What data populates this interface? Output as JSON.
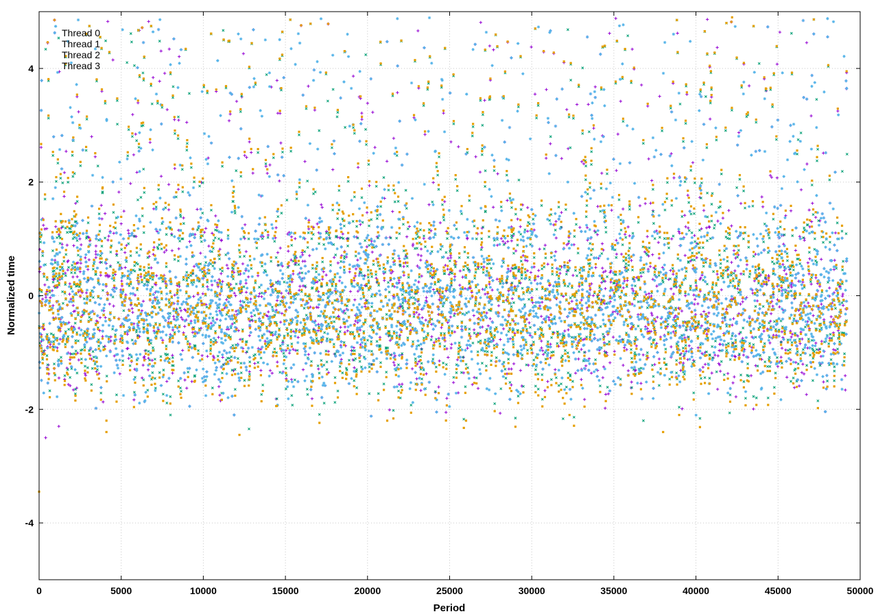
{
  "chart_data": {
    "type": "scatter",
    "title": "",
    "xlabel": "Period",
    "ylabel": "Normalized time",
    "xlim": [
      0,
      50000
    ],
    "ylim": [
      -5,
      5
    ],
    "x_ticks": [
      "0",
      "5000",
      "10000",
      "15000",
      "20000",
      "25000",
      "30000",
      "35000",
      "40000",
      "45000",
      "50000"
    ],
    "y_ticks": [
      "-4",
      "-2",
      "0",
      "2",
      "4"
    ],
    "grid": true,
    "legend_position": "top-left",
    "series": [
      {
        "name": "Thread 0",
        "color": "#9400d3",
        "marker": "plus",
        "x_range": [
          0,
          49200
        ],
        "typical_range": [
          -1.5,
          1.0
        ],
        "points": [
          [
            11000,
            -1.75
          ],
          [
            10950,
            -1.6
          ],
          [
            11050,
            -1.85
          ],
          [
            400,
            -2.5
          ],
          [
            1200,
            -2.3
          ],
          [
            31800,
            1.2
          ],
          [
            38500,
            2.5
          ],
          [
            19500,
            3.5
          ],
          [
            3200,
            2.8
          ],
          [
            42000,
            1.5
          ]
        ]
      },
      {
        "name": "Thread 1",
        "color": "#009e73",
        "marker": "cross",
        "x_range": [
          0,
          49200
        ],
        "typical_range": [
          -1.5,
          1.0
        ],
        "points": [
          [
            5800,
            -1.7
          ],
          [
            8000,
            -2.1
          ],
          [
            22000,
            -1.8
          ],
          [
            36800,
            -2.2
          ],
          [
            41000,
            1.8
          ],
          [
            27000,
            3.0
          ],
          [
            12000,
            2.2
          ]
        ]
      },
      {
        "name": "Thread 2",
        "color": "#56b4e9",
        "marker": "star",
        "x_range": [
          0,
          49200
        ],
        "typical_range": [
          -1.5,
          1.0
        ],
        "points": [
          [
            6500,
            -1.7
          ],
          [
            6450,
            -1.85
          ],
          [
            32000,
            0.5
          ],
          [
            31700,
            1.4
          ],
          [
            32200,
            2.0
          ],
          [
            46000,
            2.5
          ],
          [
            24000,
            1.6
          ],
          [
            15500,
            -1.6
          ]
        ]
      },
      {
        "name": "Thread 3",
        "color": "#e69f00",
        "marker": "square",
        "x_range": [
          0,
          49200
        ],
        "typical_range": [
          -1.6,
          1.1
        ],
        "points": [
          [
            4100,
            -2.2
          ],
          [
            4100,
            -2.4
          ],
          [
            12200,
            -2.45
          ],
          [
            32000,
            -1.9
          ],
          [
            32300,
            -2.1
          ],
          [
            31900,
            -1.8
          ],
          [
            0,
            -3.45
          ],
          [
            42200,
            4.9
          ],
          [
            38000,
            -2.4
          ],
          [
            21200,
            -2.2
          ],
          [
            26000,
            -2.2
          ]
        ]
      }
    ]
  }
}
